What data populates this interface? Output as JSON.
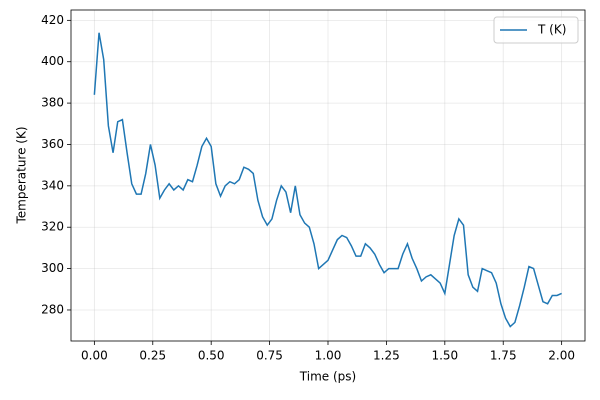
{
  "chart_data": {
    "type": "line",
    "xlabel": "Time (ps)",
    "ylabel": "Temperature (K)",
    "x": [
      0,
      0.02,
      0.04,
      0.06,
      0.08,
      0.1,
      0.12,
      0.14,
      0.16,
      0.18,
      0.2,
      0.22,
      0.24,
      0.26,
      0.28,
      0.3,
      0.32,
      0.34,
      0.36,
      0.38,
      0.4,
      0.42,
      0.44,
      0.46,
      0.48,
      0.5,
      0.52,
      0.54,
      0.56,
      0.58,
      0.6,
      0.62,
      0.64,
      0.66,
      0.68,
      0.7,
      0.72,
      0.74,
      0.76,
      0.78,
      0.8,
      0.82,
      0.84,
      0.86,
      0.88,
      0.9,
      0.92,
      0.94,
      0.96,
      0.98,
      1,
      1.02,
      1.04,
      1.06,
      1.08,
      1.1,
      1.12,
      1.14,
      1.16,
      1.18,
      1.2,
      1.22,
      1.24,
      1.26,
      1.28,
      1.3,
      1.32,
      1.34,
      1.36,
      1.38,
      1.4,
      1.42,
      1.44,
      1.46,
      1.48,
      1.5,
      1.52,
      1.54,
      1.56,
      1.58,
      1.6,
      1.62,
      1.64,
      1.66,
      1.68,
      1.7,
      1.72,
      1.74,
      1.76,
      1.78,
      1.8,
      1.82,
      1.84,
      1.86,
      1.88,
      1.9,
      1.92,
      1.94,
      1.96,
      1.98,
      2
    ],
    "series": [
      {
        "name": "T (K)",
        "color": "#1f77b4",
        "values": [
          384,
          414,
          401,
          369,
          356,
          371,
          372,
          356,
          341,
          336,
          336,
          346,
          360,
          350,
          334,
          338,
          341,
          338,
          340,
          338,
          343,
          342,
          350,
          359,
          363,
          359,
          341,
          335,
          340,
          342,
          341,
          343,
          349,
          348,
          346,
          333,
          325,
          321,
          324,
          333,
          340,
          337,
          327,
          340,
          326,
          322,
          320,
          312,
          300,
          302,
          304,
          309,
          314,
          316,
          315,
          311,
          306,
          306,
          312,
          310,
          307,
          302,
          298,
          300,
          300,
          300,
          307,
          312,
          305,
          300,
          294,
          296,
          297,
          295,
          293,
          288,
          302,
          316,
          324,
          321,
          297,
          291,
          289,
          300,
          299,
          298,
          293,
          283,
          276,
          272,
          274,
          282,
          291,
          301,
          300,
          292,
          284,
          283,
          287,
          287,
          288
        ]
      }
    ],
    "xlim": [
      -0.1,
      2.1
    ],
    "ylim": [
      265,
      425
    ],
    "xticks": [
      {
        "value": 0,
        "label": "0.00"
      },
      {
        "value": 0.25,
        "label": "0.25"
      },
      {
        "value": 0.5,
        "label": "0.50"
      },
      {
        "value": 0.75,
        "label": "0.75"
      },
      {
        "value": 1,
        "label": "1.00"
      },
      {
        "value": 1.25,
        "label": "1.25"
      },
      {
        "value": 1.5,
        "label": "1.50"
      },
      {
        "value": 1.75,
        "label": "1.75"
      },
      {
        "value": 2,
        "label": "2.00"
      }
    ],
    "yticks": [
      280,
      300,
      320,
      340,
      360,
      380,
      400,
      420
    ],
    "grid": true,
    "legend": "upper right"
  }
}
